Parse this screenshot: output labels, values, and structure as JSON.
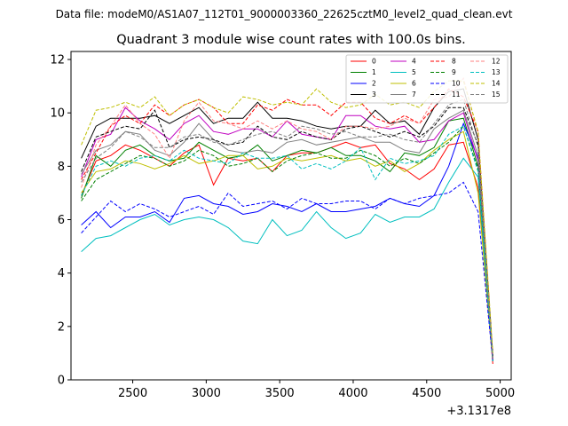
{
  "chart_data": {
    "type": "line",
    "suptitle": "Data file: modeM0/AS1A07_112T01_9000003360_22625cztM0_level2_quad_clean.evt",
    "title": "Quadrant 3 module wise count rates with 100.0s bins.",
    "xlabel": "",
    "ylabel": "",
    "x_offset_label": "+3.1317e8",
    "xlim": [
      2080,
      5075
    ],
    "ylim": [
      0,
      12.3
    ],
    "xticks": [
      2500,
      3000,
      3500,
      4000,
      4500,
      5000
    ],
    "yticks": [
      0,
      2,
      4,
      6,
      8,
      10,
      12
    ],
    "grid": false,
    "legend_placement": "top-right",
    "legend_columns": 4,
    "x": [
      2150,
      2250,
      2350,
      2450,
      2550,
      2650,
      2750,
      2850,
      2950,
      3050,
      3150,
      3250,
      3350,
      3450,
      3550,
      3650,
      3750,
      3850,
      3950,
      4050,
      4150,
      4250,
      4350,
      4450,
      4550,
      4650,
      4750,
      4850,
      4950
    ],
    "series": [
      {
        "name": "0",
        "color": "#ff0000",
        "dash": "solid",
        "values": [
          6.9,
          8.2,
          8.4,
          8.8,
          8.6,
          8.3,
          8.0,
          8.5,
          8.8,
          7.3,
          8.3,
          8.2,
          8.3,
          7.8,
          8.4,
          8.5,
          8.5,
          8.7,
          8.9,
          8.7,
          8.8,
          8.1,
          7.9,
          7.5,
          7.9,
          8.8,
          8.9,
          7.2,
          0.6
        ]
      },
      {
        "name": "1",
        "color": "#008000",
        "dash": "solid",
        "values": [
          6.8,
          8.4,
          8.0,
          8.6,
          8.8,
          8.4,
          8.2,
          8.3,
          8.9,
          8.6,
          8.3,
          8.4,
          8.8,
          8.2,
          8.4,
          8.6,
          8.5,
          8.7,
          8.4,
          8.4,
          8.2,
          7.8,
          8.5,
          8.4,
          8.7,
          9.7,
          9.8,
          8.0,
          0.7
        ]
      },
      {
        "name": "2",
        "color": "#0000ff",
        "dash": "solid",
        "values": [
          5.8,
          6.3,
          5.7,
          6.1,
          6.1,
          6.3,
          5.9,
          6.8,
          6.9,
          6.6,
          6.5,
          6.2,
          6.3,
          6.6,
          6.5,
          6.3,
          6.6,
          6.3,
          6.3,
          6.4,
          6.5,
          6.8,
          6.6,
          6.5,
          6.9,
          8.0,
          9.6,
          8.3,
          0.8
        ]
      },
      {
        "name": "3",
        "color": "#000000",
        "dash": "solid",
        "values": [
          8.3,
          9.5,
          9.8,
          9.8,
          9.8,
          9.9,
          9.6,
          9.9,
          10.2,
          9.6,
          9.8,
          9.8,
          10.4,
          9.8,
          9.8,
          9.7,
          9.5,
          9.4,
          9.5,
          9.5,
          10.1,
          9.6,
          9.7,
          9.2,
          10.2,
          10.8,
          10.9,
          9.0,
          0.9
        ]
      },
      {
        "name": "4",
        "color": "#c000c0",
        "dash": "solid",
        "values": [
          7.6,
          9.0,
          9.2,
          10.2,
          9.7,
          9.4,
          9.0,
          9.6,
          9.9,
          9.3,
          9.2,
          9.4,
          9.4,
          9.1,
          9.7,
          9.2,
          9.1,
          9.0,
          9.9,
          9.9,
          9.5,
          9.4,
          9.5,
          8.9,
          9.0,
          9.7,
          10.0,
          8.2,
          0.8
        ]
      },
      {
        "name": "5",
        "color": "#00bfbf",
        "dash": "solid",
        "values": [
          4.8,
          5.3,
          5.4,
          5.7,
          6.0,
          6.2,
          5.8,
          6.0,
          6.1,
          6.0,
          5.7,
          5.2,
          5.1,
          6.0,
          5.4,
          5.6,
          6.3,
          5.7,
          5.3,
          5.5,
          6.2,
          5.9,
          6.1,
          6.1,
          6.4,
          7.4,
          8.3,
          7.6,
          0.7
        ]
      },
      {
        "name": "6",
        "color": "#bfbf00",
        "dash": "solid",
        "values": [
          7.0,
          7.8,
          7.9,
          8.2,
          8.1,
          7.9,
          8.1,
          8.4,
          8.1,
          8.2,
          8.4,
          8.4,
          7.9,
          8.0,
          8.3,
          8.2,
          8.3,
          8.4,
          8.2,
          8.3,
          8.0,
          8.2,
          7.8,
          8.1,
          8.6,
          9.0,
          9.3,
          7.0,
          0.7
        ]
      },
      {
        "name": "7",
        "color": "#808080",
        "dash": "solid",
        "values": [
          7.7,
          8.6,
          8.8,
          9.3,
          9.2,
          8.6,
          8.4,
          8.9,
          9.6,
          9.0,
          8.6,
          8.5,
          8.6,
          8.5,
          8.9,
          9.0,
          8.8,
          8.9,
          9.0,
          9.1,
          8.9,
          8.9,
          8.6,
          8.5,
          9.4,
          9.8,
          10.1,
          8.4,
          0.8
        ]
      },
      {
        "name": "8",
        "color": "#ff0000",
        "dash": "dashed",
        "values": [
          7.5,
          8.5,
          9.5,
          9.9,
          9.6,
          10.3,
          9.9,
          10.3,
          10.5,
          10.2,
          9.6,
          9.6,
          10.3,
          10.1,
          10.5,
          10.3,
          10.3,
          9.9,
          10.4,
          10.4,
          9.8,
          9.6,
          9.9,
          9.6,
          10.2,
          10.9,
          10.6,
          9.3,
          0.8
        ]
      },
      {
        "name": "9",
        "color": "#008000",
        "dash": "dashed",
        "values": [
          6.7,
          7.5,
          7.8,
          8.1,
          8.4,
          8.3,
          8.0,
          8.2,
          8.6,
          8.4,
          8.0,
          8.1,
          8.3,
          7.8,
          8.2,
          8.4,
          8.5,
          8.3,
          8.3,
          8.6,
          8.4,
          8.0,
          8.3,
          8.1,
          8.5,
          8.9,
          9.5,
          7.9,
          0.7
        ]
      },
      {
        "name": "10",
        "color": "#0000ff",
        "dash": "dashed",
        "values": [
          5.5,
          6.1,
          6.7,
          6.3,
          6.6,
          6.4,
          6.1,
          6.3,
          6.5,
          6.2,
          7.0,
          6.5,
          6.6,
          6.7,
          6.4,
          6.8,
          6.6,
          6.6,
          6.7,
          6.7,
          6.4,
          6.8,
          6.6,
          6.8,
          6.9,
          7.0,
          7.4,
          6.3,
          0.7
        ]
      },
      {
        "name": "11",
        "color": "#000000",
        "dash": "dashed",
        "values": [
          7.8,
          9.1,
          9.3,
          9.5,
          9.4,
          10.1,
          8.7,
          9.0,
          9.1,
          9.0,
          8.8,
          8.9,
          9.5,
          9.1,
          9.0,
          9.3,
          9.1,
          9.0,
          9.4,
          9.5,
          9.3,
          9.1,
          9.3,
          9.1,
          9.5,
          10.2,
          10.2,
          8.8,
          0.9
        ]
      },
      {
        "name": "12",
        "color": "#ff8080",
        "dash": "dashed",
        "values": [
          7.2,
          8.8,
          9.5,
          10.3,
          9.6,
          9.2,
          8.3,
          9.7,
          10.4,
          9.7,
          9.6,
          9.4,
          9.7,
          9.4,
          9.7,
          9.4,
          9.3,
          9.0,
          9.5,
          9.5,
          9.4,
          9.5,
          9.8,
          9.6,
          10.5,
          10.6,
          11.3,
          9.2,
          0.8
        ]
      },
      {
        "name": "13",
        "color": "#00bfbf",
        "dash": "dashed",
        "values": [
          6.9,
          8.0,
          8.2,
          8.0,
          8.3,
          8.4,
          8.2,
          8.6,
          8.3,
          8.2,
          8.1,
          8.5,
          8.3,
          8.3,
          8.4,
          7.9,
          8.1,
          7.9,
          8.2,
          8.7,
          7.5,
          8.3,
          8.1,
          8.2,
          8.4,
          9.2,
          9.5,
          7.8,
          0.7
        ]
      },
      {
        "name": "14",
        "color": "#bfbf00",
        "dash": "dashed",
        "values": [
          8.8,
          10.1,
          10.2,
          10.4,
          10.2,
          10.6,
          9.9,
          10.3,
          10.5,
          10.2,
          10.0,
          10.6,
          10.5,
          10.3,
          10.4,
          10.3,
          10.9,
          10.4,
          10.2,
          10.3,
          10.7,
          10.3,
          10.4,
          10.2,
          10.8,
          11.2,
          11.2,
          9.3,
          1.0
        ]
      },
      {
        "name": "15",
        "color": "#808080",
        "dash": "dashed",
        "values": [
          7.4,
          8.3,
          8.7,
          9.3,
          9.1,
          8.7,
          8.7,
          9.1,
          9.2,
          8.9,
          8.8,
          9.0,
          9.2,
          9.3,
          9.1,
          9.5,
          9.4,
          9.2,
          9.3,
          9.1,
          9.1,
          9.2,
          9.0,
          8.9,
          9.6,
          10.3,
          10.5,
          8.7,
          0.8
        ]
      }
    ]
  }
}
